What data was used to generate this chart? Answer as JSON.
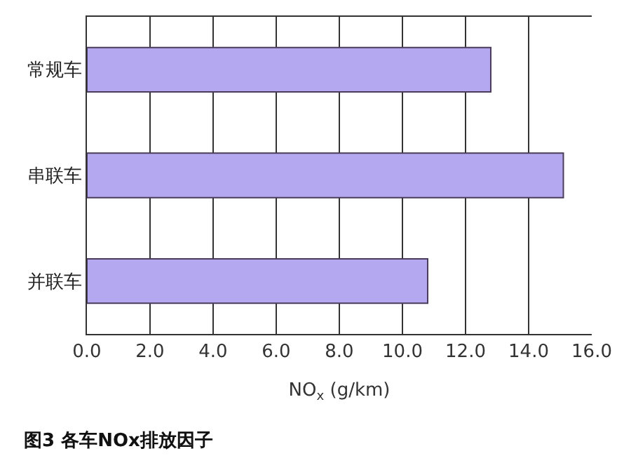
{
  "chart_data": {
    "type": "bar",
    "orientation": "horizontal",
    "categories": [
      "常规车",
      "串联车",
      "并联车"
    ],
    "values": [
      12.8,
      15.1,
      10.8
    ],
    "color": "#b4a8f0",
    "xlabel": "NO$_{x}$ (g/km)",
    "xlim": [
      0,
      16
    ],
    "xticks": [
      {
        "value": 0,
        "label": "0.0"
      },
      {
        "value": 2,
        "label": "2.0"
      },
      {
        "value": 4,
        "label": "4.0"
      },
      {
        "value": 6,
        "label": "6.0"
      },
      {
        "value": 8,
        "label": "8.0"
      },
      {
        "value": 10,
        "label": "10.0"
      },
      {
        "value": 12,
        "label": "12.0"
      },
      {
        "value": 14,
        "label": "14.0"
      },
      {
        "value": 16,
        "label": "16.0"
      }
    ],
    "grid": "x",
    "legend": false,
    "annotations": [
      "图3 各车NOx排放因子"
    ]
  }
}
